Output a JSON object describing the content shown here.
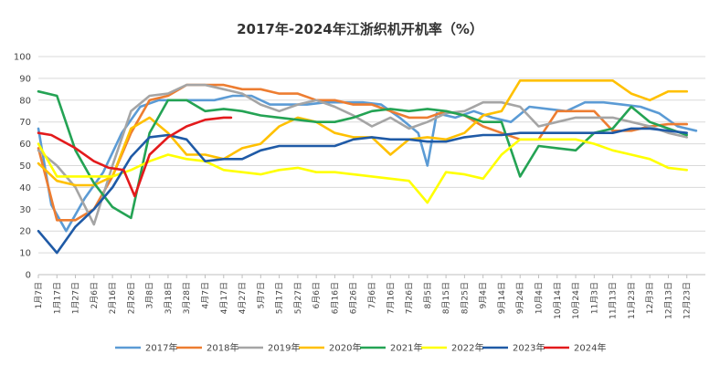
{
  "chart_data": {
    "type": "line",
    "title": "2017年-2024年江浙织机开机率（%）",
    "xlabel": "",
    "ylabel": "",
    "ylim": [
      0,
      100
    ],
    "yticks": [
      0,
      10,
      20,
      30,
      40,
      50,
      60,
      70,
      80,
      90,
      100
    ],
    "grid": true,
    "legend_position": "bottom",
    "x_index_range": [
      0,
      36
    ],
    "x_tick_labels": [
      "1月7日",
      "1月17日",
      "1月27日",
      "2月6日",
      "2月16日",
      "2月26日",
      "3月8日",
      "3月18日",
      "3月28日",
      "4月7日",
      "4月17日",
      "4月27日",
      "5月7日",
      "5月17日",
      "5月27日",
      "6月6日",
      "6月16日",
      "6月26日",
      "7月6日",
      "7月16日",
      "7月26日",
      "8月5日",
      "8月15日",
      "8月25日",
      "9月4日",
      "9月14日",
      "9月24日",
      "10月4日",
      "10月14日",
      "10月24日",
      "11月3日",
      "11月13日",
      "11月23日",
      "12月3日",
      "12月13日",
      "12月23日"
    ],
    "series": [
      {
        "name": "2017年",
        "color": "#5b9bd5",
        "x": [
          0,
          0.7,
          1.5,
          2.5,
          3.5,
          4.5,
          5.5,
          6.5,
          7.5,
          8.5,
          9.5,
          10.5,
          11.5,
          12.5,
          13.5,
          14.5,
          15.5,
          16.5,
          17.5,
          18.5,
          19.5,
          20.5,
          21,
          21.5,
          22.5,
          23.5,
          24.5,
          25.5,
          26.5,
          27.5,
          28.5,
          29.5,
          30.5,
          31.5,
          32.5,
          33.5,
          34.5,
          35.5
        ],
        "y": [
          67,
          32,
          20,
          35,
          47,
          65,
          77,
          80,
          80,
          80,
          80,
          82,
          82,
          78,
          78,
          78,
          79,
          79,
          79,
          78,
          72,
          65,
          50,
          74,
          72,
          75,
          72,
          70,
          77,
          76,
          75,
          79,
          79,
          78,
          77,
          74,
          68,
          66
        ]
      },
      {
        "name": "2018年",
        "color": "#ed7d31",
        "x": [
          0,
          1,
          2,
          3,
          4,
          5,
          6,
          7,
          8,
          9,
          10,
          11,
          12,
          13,
          14,
          15,
          16,
          17,
          18,
          19,
          20,
          21,
          22,
          23,
          24,
          25,
          26,
          27,
          28,
          29,
          30,
          31,
          32,
          33,
          34,
          35
        ],
        "y": [
          58,
          25,
          25,
          30,
          45,
          65,
          80,
          82,
          87,
          87,
          87,
          85,
          85,
          83,
          83,
          80,
          80,
          78,
          78,
          75,
          72,
          72,
          75,
          73,
          68,
          65,
          62,
          62,
          75,
          75,
          75,
          66,
          66,
          68,
          69,
          69
        ]
      },
      {
        "name": "2019年",
        "color": "#a5a5a5",
        "x": [
          0,
          1,
          2,
          3,
          4,
          5,
          6,
          7,
          8,
          9,
          10,
          11,
          12,
          13,
          14,
          15,
          16,
          17,
          18,
          19,
          20,
          21,
          22,
          23,
          24,
          25,
          26,
          27,
          28,
          29,
          30,
          31,
          32,
          33,
          34,
          35
        ],
        "y": [
          57,
          50,
          40,
          23,
          50,
          75,
          82,
          83,
          87,
          87,
          85,
          83,
          78,
          75,
          78,
          80,
          77,
          73,
          68,
          72,
          67,
          70,
          74,
          75,
          79,
          79,
          77,
          68,
          70,
          72,
          72,
          72,
          70,
          68,
          65,
          63
        ]
      },
      {
        "name": "2020年",
        "color": "#ffc000",
        "x": [
          0,
          1,
          2,
          3,
          4,
          5,
          6,
          7,
          8,
          9,
          10,
          11,
          12,
          13,
          14,
          15,
          16,
          17,
          18,
          19,
          20,
          21,
          22,
          23,
          24,
          25,
          26,
          27,
          28,
          29,
          30,
          31,
          32,
          33,
          34,
          35
        ],
        "y": [
          51,
          43,
          41,
          41,
          45,
          67,
          72,
          65,
          55,
          55,
          53,
          58,
          60,
          68,
          72,
          70,
          65,
          63,
          63,
          55,
          62,
          63,
          62,
          65,
          73,
          75,
          89,
          89,
          89,
          89,
          89,
          89,
          83,
          80,
          84,
          84
        ]
      },
      {
        "name": "2021年",
        "color": "#24a354",
        "x": [
          0,
          1,
          2,
          3,
          4,
          5,
          6,
          7,
          8,
          9,
          10,
          11,
          12,
          13,
          14,
          15,
          16,
          17,
          18,
          19,
          20,
          21,
          22,
          23,
          24,
          25,
          26,
          27,
          28,
          29,
          30,
          31,
          32,
          33,
          34,
          35
        ],
        "y": [
          84,
          82,
          57,
          42,
          31,
          26,
          65,
          80,
          80,
          75,
          76,
          75,
          73,
          72,
          71,
          70,
          70,
          72,
          75,
          76,
          75,
          76,
          75,
          73,
          70,
          70,
          45,
          59,
          58,
          57,
          65,
          67,
          77,
          70,
          67,
          64
        ]
      },
      {
        "name": "2022年",
        "color": "#ffff00",
        "x": [
          0,
          1,
          2,
          3,
          4,
          5,
          6,
          7,
          8,
          9,
          10,
          11,
          12,
          13,
          14,
          15,
          16,
          17,
          18,
          19,
          20,
          21,
          22,
          23,
          24,
          25,
          26,
          27,
          28,
          29,
          30,
          31,
          32,
          33,
          34,
          35
        ],
        "y": [
          60,
          45,
          45,
          45,
          45,
          48,
          52,
          55,
          53,
          52,
          48,
          47,
          46,
          48,
          49,
          47,
          47,
          46,
          45,
          44,
          43,
          33,
          47,
          46,
          44,
          55,
          62,
          62,
          62,
          62,
          60,
          57,
          55,
          53,
          49,
          48
        ]
      },
      {
        "name": "2023年",
        "color": "#1f5aa6",
        "x": [
          0,
          1,
          2,
          3,
          4,
          5,
          6,
          7,
          8,
          9,
          10,
          11,
          12,
          13,
          14,
          15,
          16,
          17,
          18,
          19,
          20,
          21,
          22,
          23,
          24,
          25,
          26,
          27,
          28,
          29,
          30,
          31,
          32,
          33,
          34,
          35
        ],
        "y": [
          20,
          10,
          22,
          30,
          40,
          54,
          63,
          64,
          62,
          52,
          53,
          53,
          57,
          59,
          59,
          59,
          59,
          62,
          63,
          62,
          62,
          61,
          61,
          63,
          64,
          64,
          65,
          65,
          65,
          65,
          65,
          65,
          67,
          67,
          66,
          65
        ]
      },
      {
        "name": "2024年",
        "color": "#e31a1c",
        "x": [
          0,
          0.7,
          2,
          3,
          3.8,
          4.6,
          5.2,
          6,
          7,
          8,
          9,
          10,
          10.4
        ],
        "y": [
          65,
          64,
          58,
          52,
          49,
          48,
          36,
          55,
          63,
          68,
          71,
          72,
          72
        ]
      }
    ]
  }
}
